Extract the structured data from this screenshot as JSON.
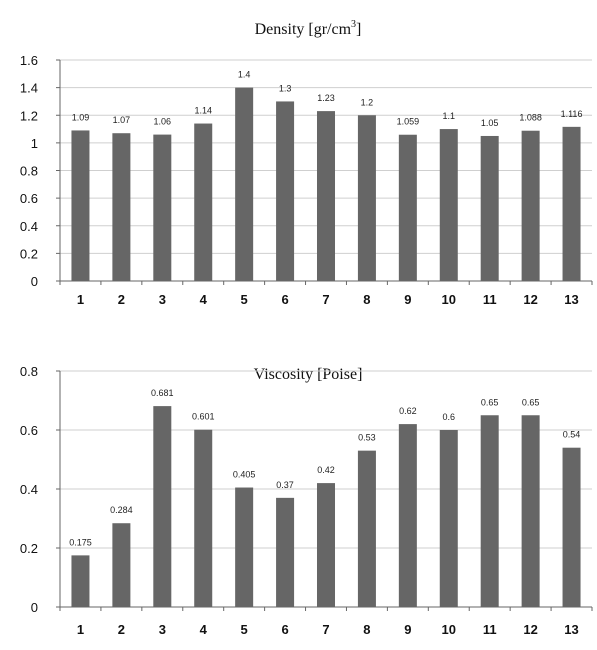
{
  "chart_data": [
    {
      "type": "bar",
      "title": "Density [gr/cm",
      "title_sup": "3",
      "title_end": "]",
      "categories": [
        "1",
        "2",
        "3",
        "4",
        "5",
        "6",
        "7",
        "8",
        "9",
        "10",
        "11",
        "12",
        "13"
      ],
      "values": [
        1.09,
        1.07,
        1.06,
        1.14,
        1.4,
        1.3,
        1.23,
        1.2,
        1.059,
        1.1,
        1.05,
        1.088,
        1.116
      ],
      "labels": [
        "1.09",
        "1.07",
        "1.06",
        "1.14",
        "1.4",
        "1.3",
        "1.23",
        "1.2",
        "1.059",
        "1.1",
        "1.05",
        "1.088",
        "1.116"
      ],
      "yticks": [
        "0",
        "0.2",
        "0.4",
        "0.6",
        "0.8",
        "1",
        "1.2",
        "1.4",
        "1.6"
      ],
      "ylim": [
        0,
        1.6
      ],
      "grid": true,
      "bar_color": "#666666"
    },
    {
      "type": "bar",
      "title": "Viscosity [Poise]",
      "categories": [
        "1",
        "2",
        "3",
        "4",
        "5",
        "6",
        "7",
        "8",
        "9",
        "10",
        "11",
        "12",
        "13"
      ],
      "values": [
        0.175,
        0.284,
        0.681,
        0.601,
        0.405,
        0.37,
        0.42,
        0.53,
        0.62,
        0.6,
        0.65,
        0.65,
        0.54
      ],
      "labels": [
        "0.175",
        "0.284",
        "0.681",
        "0.601",
        "0.405",
        "0.37",
        "0.42",
        "0.53",
        "0.62",
        "0.6",
        "0.65",
        "0.65",
        "0.54"
      ],
      "yticks": [
        "0",
        "0.2",
        "0.4",
        "0.6",
        "0.8"
      ],
      "ylim": [
        0,
        0.8
      ],
      "grid": true,
      "bar_color": "#666666"
    }
  ]
}
